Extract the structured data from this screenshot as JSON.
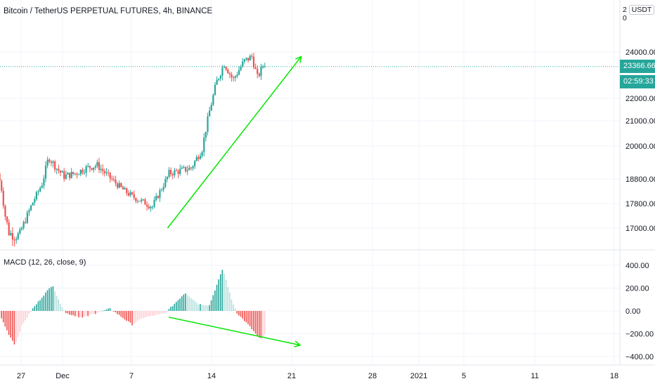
{
  "header": {
    "title": "Bitcoin / TetherUS PERPETUAL FUTURES, 4h, BINANCE",
    "currency_prefix": "2",
    "currency": "USDT",
    "currency_suffix": "0"
  },
  "price_tags": {
    "last_price": "23366.66",
    "countdown": "02:59:33"
  },
  "indicator": {
    "label": "MACD (12, 26, close, 9)"
  },
  "colors": {
    "up": "#26a69a",
    "down": "#ef5350",
    "up_light": "#b2dfdb",
    "down_light": "#ffcdd2",
    "trendline": "#00e600",
    "price_line": "#26a69a"
  },
  "chart_data": [
    {
      "type": "candlestick",
      "interval": "4h",
      "y_ticks": [
        "24000.00",
        "22000.00",
        "21000.00",
        "20000.00",
        "18800.00",
        "17800.00",
        "17000.00"
      ],
      "ylim": [
        16500,
        24600
      ],
      "last_price": 23366.66,
      "anchor_points": [
        {
          "day": -2,
          "price": 19000
        },
        {
          "day": -1.7,
          "price": 18500
        },
        {
          "day": -1.4,
          "price": 17500
        },
        {
          "day": -1.0,
          "price": 16900
        },
        {
          "day": -0.5,
          "price": 16800
        },
        {
          "day": 0,
          "price": 16850
        },
        {
          "day": 1,
          "price": 17700
        },
        {
          "day": 2,
          "price": 18600
        },
        {
          "day": 2.6,
          "price": 19600
        },
        {
          "day": 3.3,
          "price": 19200
        },
        {
          "day": 4,
          "price": 18900
        },
        {
          "day": 5,
          "price": 19000
        },
        {
          "day": 6,
          "price": 19200
        },
        {
          "day": 7,
          "price": 19300
        },
        {
          "day": 8.5,
          "price": 18700
        },
        {
          "day": 9.5,
          "price": 18300
        },
        {
          "day": 10.5,
          "price": 18000
        },
        {
          "day": 12,
          "price": 17700
        },
        {
          "day": 13.5,
          "price": 19000
        },
        {
          "day": 15.5,
          "price": 19200
        },
        {
          "day": 16.5,
          "price": 19900
        },
        {
          "day": 17.2,
          "price": 21500
        },
        {
          "day": 17.8,
          "price": 22700
        },
        {
          "day": 18.5,
          "price": 23500
        },
        {
          "day": 19.3,
          "price": 22800
        },
        {
          "day": 20.3,
          "price": 23600
        },
        {
          "day": 21,
          "price": 23800
        },
        {
          "day": 21.5,
          "price": 22900
        },
        {
          "day": 22,
          "price": 23366.66
        }
      ],
      "trendline": {
        "start": {
          "day": 13.2,
          "price": 17000
        },
        "end": {
          "day": 25.3,
          "price": 23800
        }
      }
    },
    {
      "type": "histogram",
      "name": "MACD (12, 26, close, 9)",
      "y_ticks": [
        "400.00",
        "200.00",
        "0.00",
        "−200.00",
        "−400.00"
      ],
      "ylim": [
        -420,
        420
      ],
      "anchor_points": [
        {
          "day": -2,
          "value": -30
        },
        {
          "day": -1.2,
          "value": -200
        },
        {
          "day": -0.6,
          "value": -300
        },
        {
          "day": 0,
          "value": -130
        },
        {
          "day": 1,
          "value": 20
        },
        {
          "day": 2,
          "value": 140
        },
        {
          "day": 2.8,
          "value": 230
        },
        {
          "day": 3.3,
          "value": 100
        },
        {
          "day": 4,
          "value": -20
        },
        {
          "day": 5.5,
          "value": -60
        },
        {
          "day": 7,
          "value": -10
        },
        {
          "day": 8,
          "value": 20
        },
        {
          "day": 10,
          "value": -120
        },
        {
          "day": 11,
          "value": -60
        },
        {
          "day": 13,
          "value": -20
        },
        {
          "day": 13.6,
          "value": 40
        },
        {
          "day": 14.8,
          "value": 160
        },
        {
          "day": 16,
          "value": 60
        },
        {
          "day": 17,
          "value": 50
        },
        {
          "day": 18.2,
          "value": 370
        },
        {
          "day": 19,
          "value": 100
        },
        {
          "day": 19.5,
          "value": -20
        },
        {
          "day": 20.5,
          "value": -120
        },
        {
          "day": 21.6,
          "value": -250
        },
        {
          "day": 22,
          "value": -210
        }
      ],
      "trendline": {
        "start": {
          "day": 13.3,
          "value": -55
        },
        "end": {
          "day": 25.2,
          "value": -300
        }
      }
    }
  ],
  "x_axis": {
    "ticks": [
      {
        "label": "27",
        "day": -2
      },
      {
        "label": "Dec",
        "day": 2
      },
      {
        "label": "7",
        "day": 8
      },
      {
        "label": "14",
        "day": 15
      },
      {
        "label": "21",
        "day": 22
      },
      {
        "label": "28",
        "day": 29
      },
      {
        "label": "2021",
        "day": 32
      },
      {
        "label": "5",
        "day": 36
      },
      {
        "label": "11",
        "day": 42
      },
      {
        "label": "18",
        "day": 49
      }
    ]
  }
}
